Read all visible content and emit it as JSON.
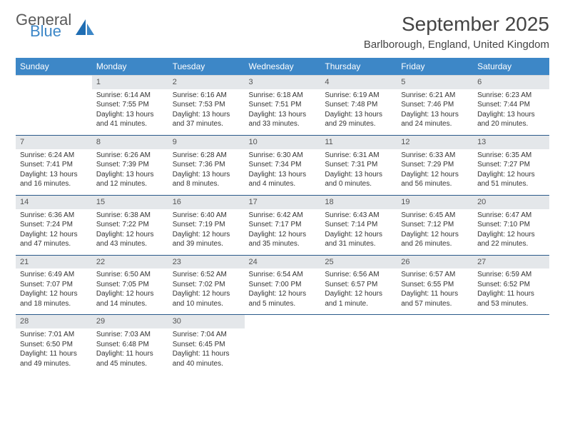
{
  "brand": {
    "line1": "General",
    "line2": "Blue"
  },
  "title": "September 2025",
  "location": "Barlborough, England, United Kingdom",
  "colors": {
    "header_bg": "#3d87c7",
    "header_text": "#ffffff",
    "daynum_bg": "#e4e7ea",
    "row_sep": "#2a5a8a",
    "body_text": "#333333",
    "title_text": "#444444"
  },
  "weekdays": [
    "Sunday",
    "Monday",
    "Tuesday",
    "Wednesday",
    "Thursday",
    "Friday",
    "Saturday"
  ],
  "weeks": [
    [
      null,
      {
        "n": "1",
        "sunrise": "6:14 AM",
        "sunset": "7:55 PM",
        "daylight": "13 hours and 41 minutes."
      },
      {
        "n": "2",
        "sunrise": "6:16 AM",
        "sunset": "7:53 PM",
        "daylight": "13 hours and 37 minutes."
      },
      {
        "n": "3",
        "sunrise": "6:18 AM",
        "sunset": "7:51 PM",
        "daylight": "13 hours and 33 minutes."
      },
      {
        "n": "4",
        "sunrise": "6:19 AM",
        "sunset": "7:48 PM",
        "daylight": "13 hours and 29 minutes."
      },
      {
        "n": "5",
        "sunrise": "6:21 AM",
        "sunset": "7:46 PM",
        "daylight": "13 hours and 24 minutes."
      },
      {
        "n": "6",
        "sunrise": "6:23 AM",
        "sunset": "7:44 PM",
        "daylight": "13 hours and 20 minutes."
      }
    ],
    [
      {
        "n": "7",
        "sunrise": "6:24 AM",
        "sunset": "7:41 PM",
        "daylight": "13 hours and 16 minutes."
      },
      {
        "n": "8",
        "sunrise": "6:26 AM",
        "sunset": "7:39 PM",
        "daylight": "13 hours and 12 minutes."
      },
      {
        "n": "9",
        "sunrise": "6:28 AM",
        "sunset": "7:36 PM",
        "daylight": "13 hours and 8 minutes."
      },
      {
        "n": "10",
        "sunrise": "6:30 AM",
        "sunset": "7:34 PM",
        "daylight": "13 hours and 4 minutes."
      },
      {
        "n": "11",
        "sunrise": "6:31 AM",
        "sunset": "7:31 PM",
        "daylight": "13 hours and 0 minutes."
      },
      {
        "n": "12",
        "sunrise": "6:33 AM",
        "sunset": "7:29 PM",
        "daylight": "12 hours and 56 minutes."
      },
      {
        "n": "13",
        "sunrise": "6:35 AM",
        "sunset": "7:27 PM",
        "daylight": "12 hours and 51 minutes."
      }
    ],
    [
      {
        "n": "14",
        "sunrise": "6:36 AM",
        "sunset": "7:24 PM",
        "daylight": "12 hours and 47 minutes."
      },
      {
        "n": "15",
        "sunrise": "6:38 AM",
        "sunset": "7:22 PM",
        "daylight": "12 hours and 43 minutes."
      },
      {
        "n": "16",
        "sunrise": "6:40 AM",
        "sunset": "7:19 PM",
        "daylight": "12 hours and 39 minutes."
      },
      {
        "n": "17",
        "sunrise": "6:42 AM",
        "sunset": "7:17 PM",
        "daylight": "12 hours and 35 minutes."
      },
      {
        "n": "18",
        "sunrise": "6:43 AM",
        "sunset": "7:14 PM",
        "daylight": "12 hours and 31 minutes."
      },
      {
        "n": "19",
        "sunrise": "6:45 AM",
        "sunset": "7:12 PM",
        "daylight": "12 hours and 26 minutes."
      },
      {
        "n": "20",
        "sunrise": "6:47 AM",
        "sunset": "7:10 PM",
        "daylight": "12 hours and 22 minutes."
      }
    ],
    [
      {
        "n": "21",
        "sunrise": "6:49 AM",
        "sunset": "7:07 PM",
        "daylight": "12 hours and 18 minutes."
      },
      {
        "n": "22",
        "sunrise": "6:50 AM",
        "sunset": "7:05 PM",
        "daylight": "12 hours and 14 minutes."
      },
      {
        "n": "23",
        "sunrise": "6:52 AM",
        "sunset": "7:02 PM",
        "daylight": "12 hours and 10 minutes."
      },
      {
        "n": "24",
        "sunrise": "6:54 AM",
        "sunset": "7:00 PM",
        "daylight": "12 hours and 5 minutes."
      },
      {
        "n": "25",
        "sunrise": "6:56 AM",
        "sunset": "6:57 PM",
        "daylight": "12 hours and 1 minute."
      },
      {
        "n": "26",
        "sunrise": "6:57 AM",
        "sunset": "6:55 PM",
        "daylight": "11 hours and 57 minutes."
      },
      {
        "n": "27",
        "sunrise": "6:59 AM",
        "sunset": "6:52 PM",
        "daylight": "11 hours and 53 minutes."
      }
    ],
    [
      {
        "n": "28",
        "sunrise": "7:01 AM",
        "sunset": "6:50 PM",
        "daylight": "11 hours and 49 minutes."
      },
      {
        "n": "29",
        "sunrise": "7:03 AM",
        "sunset": "6:48 PM",
        "daylight": "11 hours and 45 minutes."
      },
      {
        "n": "30",
        "sunrise": "7:04 AM",
        "sunset": "6:45 PM",
        "daylight": "11 hours and 40 minutes."
      },
      null,
      null,
      null,
      null
    ]
  ]
}
